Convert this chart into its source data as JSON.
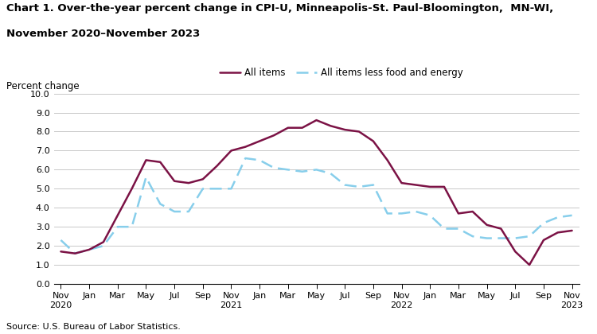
{
  "title_line1": "Chart 1. Over-the-year percent change in CPI-U, Minneapolis-St. Paul-Bloomington,  MN-WI,",
  "title_line2": "November 2020–November 2023",
  "ylabel": "Percent change",
  "source": "Source: U.S. Bureau of Labor Statistics.",
  "all_items": [
    1.7,
    1.6,
    1.8,
    2.2,
    3.6,
    5.0,
    6.5,
    6.4,
    5.4,
    5.3,
    5.5,
    6.2,
    7.0,
    7.2,
    7.5,
    7.8,
    8.2,
    8.2,
    8.6,
    8.3,
    8.1,
    8.0,
    7.5,
    6.5,
    5.3,
    5.2,
    5.1,
    5.1,
    3.7,
    3.8,
    3.1,
    2.9,
    1.7,
    1.0,
    2.3,
    2.7,
    2.8
  ],
  "core_items": [
    2.3,
    1.6,
    1.8,
    2.0,
    3.0,
    3.0,
    5.6,
    4.2,
    3.8,
    3.8,
    5.0,
    5.0,
    5.0,
    6.6,
    6.5,
    6.1,
    6.0,
    5.9,
    6.0,
    5.8,
    5.2,
    5.1,
    5.2,
    3.7,
    3.7,
    3.8,
    3.6,
    2.9,
    2.9,
    2.5,
    2.4,
    2.4,
    2.4,
    2.5,
    3.2,
    3.5,
    3.6
  ],
  "all_items_color": "#7b1245",
  "core_items_color": "#87ceeb",
  "ylim": [
    0.0,
    10.0
  ],
  "yticks": [
    0.0,
    1.0,
    2.0,
    3.0,
    4.0,
    5.0,
    6.0,
    7.0,
    8.0,
    9.0,
    10.0
  ],
  "tick_positions": [
    0,
    2,
    4,
    6,
    8,
    10,
    12,
    14,
    16,
    18,
    20,
    22,
    24,
    26,
    28,
    30,
    32,
    34,
    36
  ],
  "tick_labels": [
    "Nov\n2020",
    "Jan",
    "Mar",
    "May",
    "Jul",
    "Sep",
    "Nov\n2021",
    "Jan",
    "Mar",
    "May",
    "Jul",
    "Sep",
    "Nov\n2022",
    "Jan",
    "Mar",
    "May",
    "Jul",
    "Sep",
    "Nov\n2023"
  ]
}
